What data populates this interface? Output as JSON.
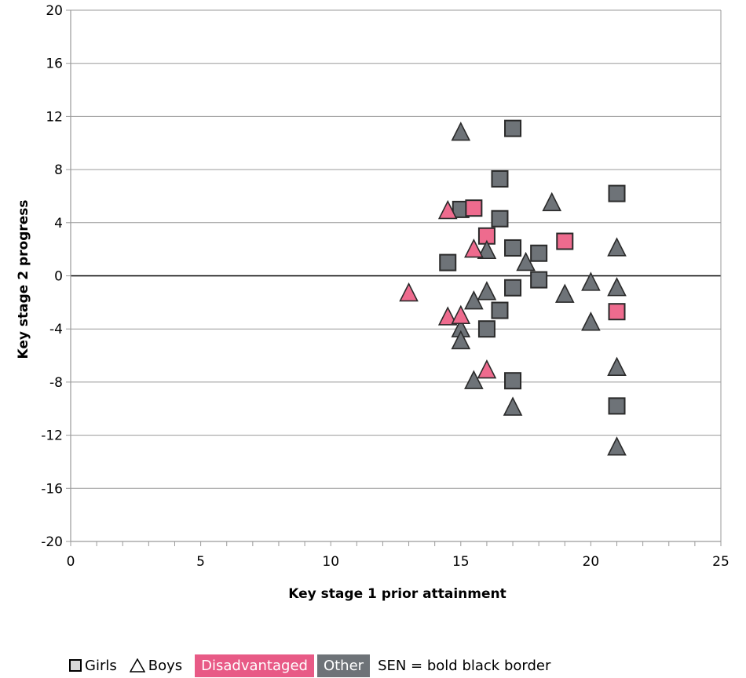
{
  "chart_data": {
    "type": "scatter",
    "title": "",
    "xlabel": "Key stage 1 prior attainment",
    "ylabel": "Key stage 2 progress",
    "xlim": [
      0,
      25
    ],
    "ylim": [
      -20,
      20
    ],
    "xticks": [
      "0",
      "5",
      "10",
      "15",
      "20",
      "25"
    ],
    "yticks": [
      "20",
      "16",
      "12",
      "8",
      "4",
      "0",
      "-4",
      "-8",
      "-12",
      "-16",
      "-20"
    ],
    "grid": "horizontal",
    "colors": {
      "disadvantaged": "#ee6b8e",
      "other": "#6e7378",
      "outline": "#2a2a2a"
    },
    "series": [
      {
        "name": "Girls Other",
        "shape": "square",
        "group": "other",
        "points": [
          [
            17,
            11.1
          ],
          [
            16.5,
            7.3
          ],
          [
            21,
            6.2
          ],
          [
            15,
            5.0
          ],
          [
            16.5,
            4.3
          ],
          [
            17,
            2.1
          ],
          [
            18,
            1.7
          ],
          [
            14.5,
            1.0
          ],
          [
            18,
            -0.3
          ],
          [
            17,
            -0.9
          ],
          [
            16.5,
            -2.6
          ],
          [
            16,
            -4.0
          ],
          [
            17,
            -7.9
          ],
          [
            21,
            -9.8
          ]
        ]
      },
      {
        "name": "Girls Disadvantaged",
        "shape": "square",
        "group": "disadvantaged",
        "points": [
          [
            15.5,
            5.1
          ],
          [
            16,
            3.0
          ],
          [
            19,
            2.6
          ],
          [
            21,
            -2.7
          ]
        ]
      },
      {
        "name": "Boys Other",
        "shape": "triangle",
        "group": "other",
        "points": [
          [
            15,
            10.8
          ],
          [
            18.5,
            5.5
          ],
          [
            16,
            1.9
          ],
          [
            21,
            2.1
          ],
          [
            17.5,
            1.0
          ],
          [
            20,
            -0.5
          ],
          [
            21,
            -0.9
          ],
          [
            16,
            -1.2
          ],
          [
            19,
            -1.4
          ],
          [
            15.5,
            -1.9
          ],
          [
            20,
            -3.5
          ],
          [
            15,
            -4.0
          ],
          [
            15,
            -4.9
          ],
          [
            15.5,
            -7.9
          ],
          [
            21,
            -6.9
          ],
          [
            17,
            -9.9
          ],
          [
            21,
            -12.9
          ]
        ]
      },
      {
        "name": "Boys Disadvantaged",
        "shape": "triangle",
        "group": "disadvantaged",
        "points": [
          [
            14.5,
            4.9
          ],
          [
            15.5,
            2.0
          ],
          [
            13,
            -1.3
          ],
          [
            14.5,
            -3.1
          ],
          [
            15,
            -3.0
          ],
          [
            16,
            -7.1
          ]
        ]
      }
    ]
  },
  "legend": {
    "girls": "Girls",
    "boys": "Boys",
    "disadvantaged": "Disadvantaged",
    "other": "Other",
    "sen": "SEN = bold black border"
  }
}
